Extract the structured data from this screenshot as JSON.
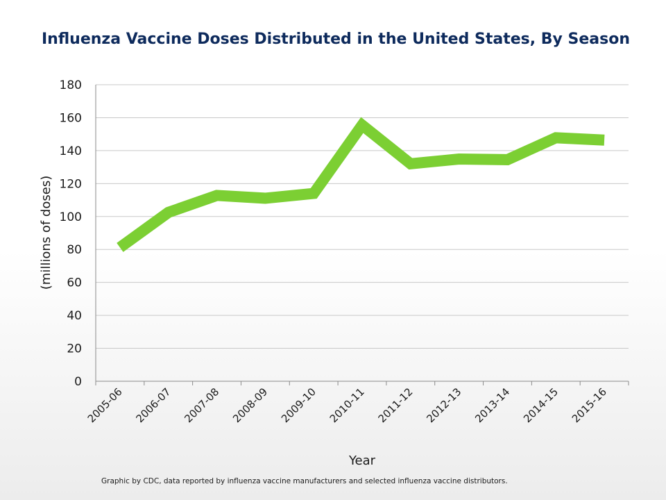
{
  "chart_data": {
    "type": "line",
    "title": "Influenza Vaccine Doses Distributed in the United States, By Season",
    "xlabel": "Year",
    "ylabel": "(millions of doses)",
    "ylim": [
      0,
      180
    ],
    "yticks": [
      0,
      20,
      40,
      60,
      80,
      100,
      120,
      140,
      160,
      180
    ],
    "grid": true,
    "categories": [
      "2005-06",
      "2006-07",
      "2007-08",
      "2008-09",
      "2009-10",
      "2010-11",
      "2011-12",
      "2012-13",
      "2013-14",
      "2014-15",
      "2015-16"
    ],
    "series": [
      {
        "values": [
          81.2,
          102.5,
          112.8,
          111.1,
          114.0,
          155.5,
          132.0,
          134.9,
          134.5,
          147.8,
          146.4
        ],
        "color": "#7ccf33"
      }
    ],
    "footnote": "Graphic by CDC, data reported by influenza vaccine manufacturers and selected influenza vaccine distributors."
  },
  "colors": {
    "title": "#0d2a5c",
    "grid": "#c8c8c8",
    "axis": "#8a8a8a"
  }
}
